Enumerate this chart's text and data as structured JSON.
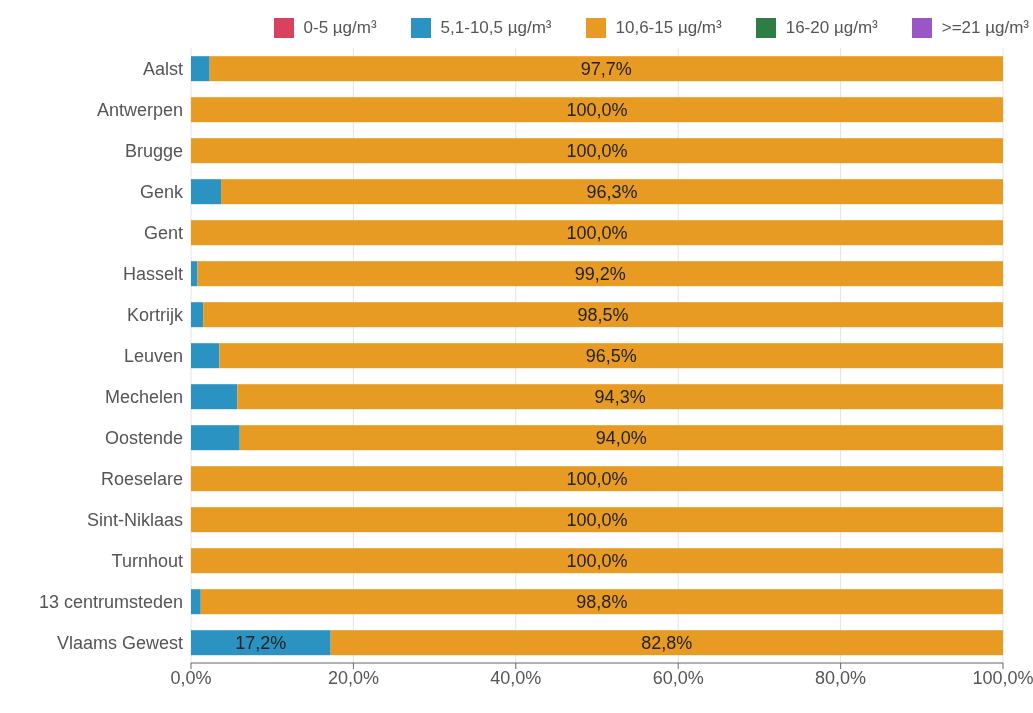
{
  "chart_data": {
    "type": "bar",
    "orientation": "horizontal",
    "stacked": true,
    "categories": [
      "Aalst",
      "Antwerpen",
      "Brugge",
      "Genk",
      "Gent",
      "Hasselt",
      "Kortrijk",
      "Leuven",
      "Mechelen",
      "Oostende",
      "Roeselare",
      "Sint-Niklaas",
      "Turnhout",
      "13 centrumsteden",
      "Vlaams Gewest"
    ],
    "series": [
      {
        "name": "0-5 µg/m³",
        "color": "#d9415f",
        "values": [
          0,
          0,
          0,
          0,
          0,
          0,
          0,
          0,
          0,
          0,
          0,
          0,
          0,
          0,
          0
        ]
      },
      {
        "name": "5,1-10,5 µg/m³",
        "color": "#2b93c1",
        "values": [
          2.3,
          0,
          0,
          3.7,
          0,
          0.8,
          1.5,
          3.5,
          5.7,
          6.0,
          0,
          0,
          0,
          1.2,
          17.2
        ],
        "value_labels": [
          null,
          null,
          null,
          null,
          null,
          null,
          null,
          null,
          null,
          null,
          null,
          null,
          null,
          null,
          "17,2%"
        ]
      },
      {
        "name": "10,6-15 µg/m³",
        "color": "#e89b22",
        "values": [
          97.7,
          100,
          100,
          96.3,
          100,
          99.2,
          98.5,
          96.5,
          94.3,
          94.0,
          100,
          100,
          100,
          98.8,
          82.8
        ],
        "value_labels": [
          "97,7%",
          "100,0%",
          "100,0%",
          "96,3%",
          "100,0%",
          "99,2%",
          "98,5%",
          "96,5%",
          "94,3%",
          "94,0%",
          "100,0%",
          "100,0%",
          "100,0%",
          "98,8%",
          "82,8%"
        ]
      },
      {
        "name": "16-20 µg/m³",
        "color": "#2e7d46",
        "values": [
          0,
          0,
          0,
          0,
          0,
          0,
          0,
          0,
          0,
          0,
          0,
          0,
          0,
          0,
          0
        ]
      },
      {
        "name": ">=21 µg/m³",
        "color": "#9b56c6",
        "values": [
          0,
          0,
          0,
          0,
          0,
          0,
          0,
          0,
          0,
          0,
          0,
          0,
          0,
          0,
          0
        ]
      }
    ],
    "xlim": [
      0,
      100
    ],
    "xticks": [
      {
        "value": 0,
        "label": "0,0%"
      },
      {
        "value": 20,
        "label": "20,0%"
      },
      {
        "value": 40,
        "label": "40,0%"
      },
      {
        "value": 60,
        "label": "60,0%"
      },
      {
        "value": 80,
        "label": "80,0%"
      },
      {
        "value": 100,
        "label": "100,0%"
      }
    ],
    "grid": "x",
    "legend": "top right"
  }
}
